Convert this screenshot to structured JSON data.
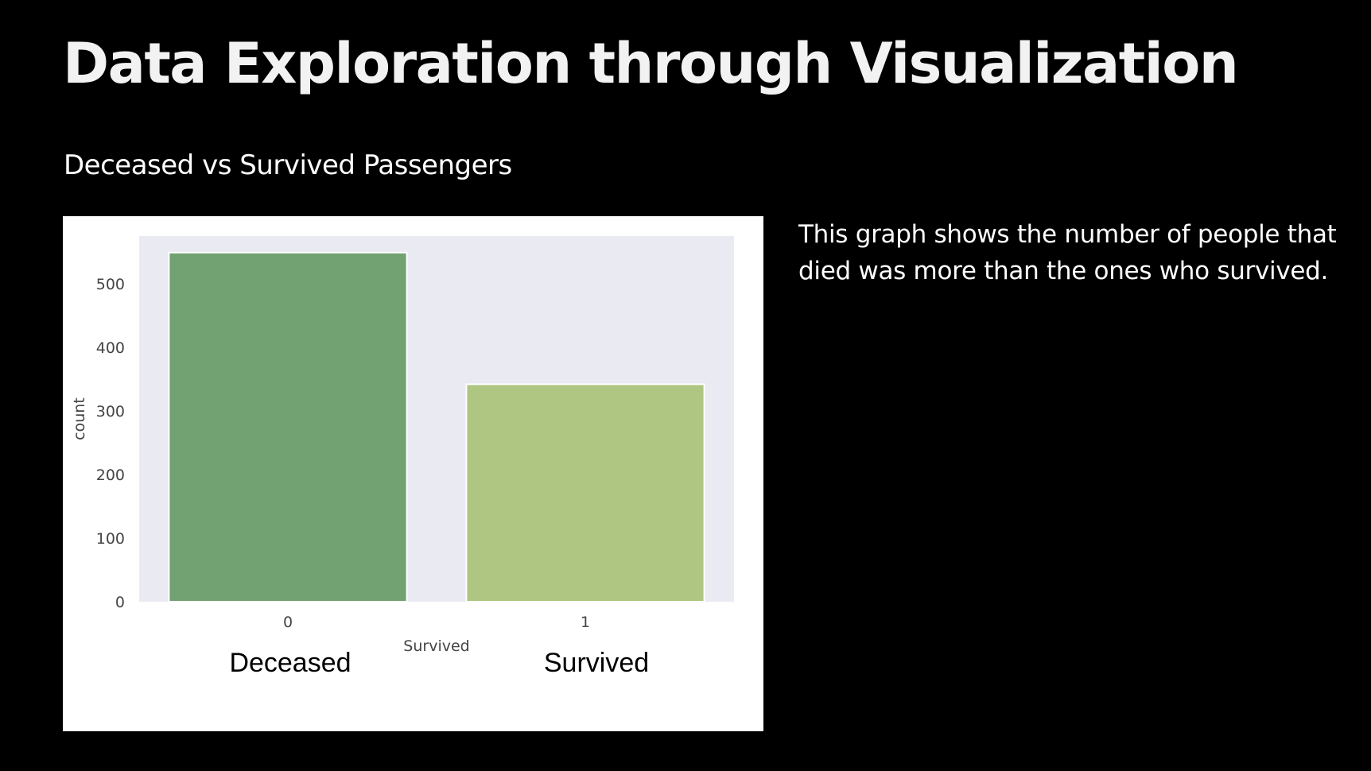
{
  "slide": {
    "title": "Data Exploration through Visualization",
    "subtitle": "Deceased vs Survived Passengers",
    "description": "This graph shows the number of people that died was more than the ones who survived."
  },
  "chart_data": {
    "type": "bar",
    "categories": [
      "0",
      "1"
    ],
    "values": [
      549,
      342
    ],
    "xlabel": "Survived",
    "ylabel": "count",
    "ylim": [
      0,
      575
    ],
    "yticks": [
      0,
      100,
      200,
      300,
      400,
      500
    ],
    "grid": false,
    "colors": [
      "#72a172",
      "#afc682"
    ],
    "background": "#eaeaf2",
    "category_captions": [
      "Deceased",
      "Survived"
    ]
  }
}
